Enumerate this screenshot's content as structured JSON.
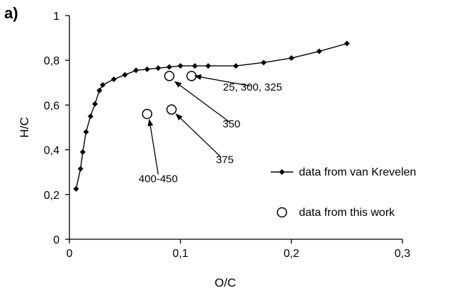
{
  "panel_label": "a)",
  "chart_data": {
    "type": "scatter",
    "xlabel": "O/C",
    "ylabel": "H/C",
    "xlim": [
      0,
      0.3
    ],
    "ylim": [
      0,
      1
    ],
    "x_ticks": [
      "0",
      "0,1",
      "0,2",
      "0,3"
    ],
    "y_ticks": [
      "0",
      "0,2",
      "0,4",
      "0,6",
      "0,8",
      "1"
    ],
    "grid": false,
    "legend_position": "right",
    "series": [
      {
        "name": "data from van Krevelen",
        "style": "line-diamond",
        "color": "#000000",
        "points": [
          [
            0.006,
            0.225
          ],
          [
            0.01,
            0.315
          ],
          [
            0.012,
            0.39
          ],
          [
            0.015,
            0.48
          ],
          [
            0.019,
            0.55
          ],
          [
            0.023,
            0.605
          ],
          [
            0.027,
            0.665
          ],
          [
            0.03,
            0.69
          ],
          [
            0.04,
            0.715
          ],
          [
            0.05,
            0.735
          ],
          [
            0.06,
            0.755
          ],
          [
            0.07,
            0.76
          ],
          [
            0.08,
            0.765
          ],
          [
            0.09,
            0.77
          ],
          [
            0.1,
            0.775
          ],
          [
            0.113,
            0.775
          ],
          [
            0.125,
            0.775
          ],
          [
            0.15,
            0.775
          ],
          [
            0.175,
            0.79
          ],
          [
            0.2,
            0.81
          ],
          [
            0.225,
            0.84
          ],
          [
            0.25,
            0.875
          ]
        ]
      },
      {
        "name": "data from this work",
        "style": "open-circle",
        "color": "#000000",
        "points": [
          [
            0.09,
            0.73
          ],
          [
            0.11,
            0.73
          ],
          [
            0.092,
            0.58
          ],
          [
            0.07,
            0.56
          ]
        ]
      }
    ],
    "annotations": [
      {
        "text": "25, 300, 325",
        "target": [
          0.113,
          0.73
        ],
        "text_at": [
          0.165,
          0.665
        ],
        "arrow_from": [
          0.163,
          0.685
        ]
      },
      {
        "text": "350",
        "target": [
          0.095,
          0.705
        ],
        "text_at": [
          0.146,
          0.5
        ],
        "arrow_from": [
          0.144,
          0.525
        ]
      },
      {
        "text": "375",
        "target": [
          0.096,
          0.56
        ],
        "text_at": [
          0.14,
          0.34
        ],
        "arrow_from": [
          0.136,
          0.37
        ]
      },
      {
        "text": "400-450",
        "target": [
          0.072,
          0.535
        ],
        "text_at": [
          0.08,
          0.255
        ],
        "arrow_from": [
          0.08,
          0.29
        ]
      }
    ]
  }
}
